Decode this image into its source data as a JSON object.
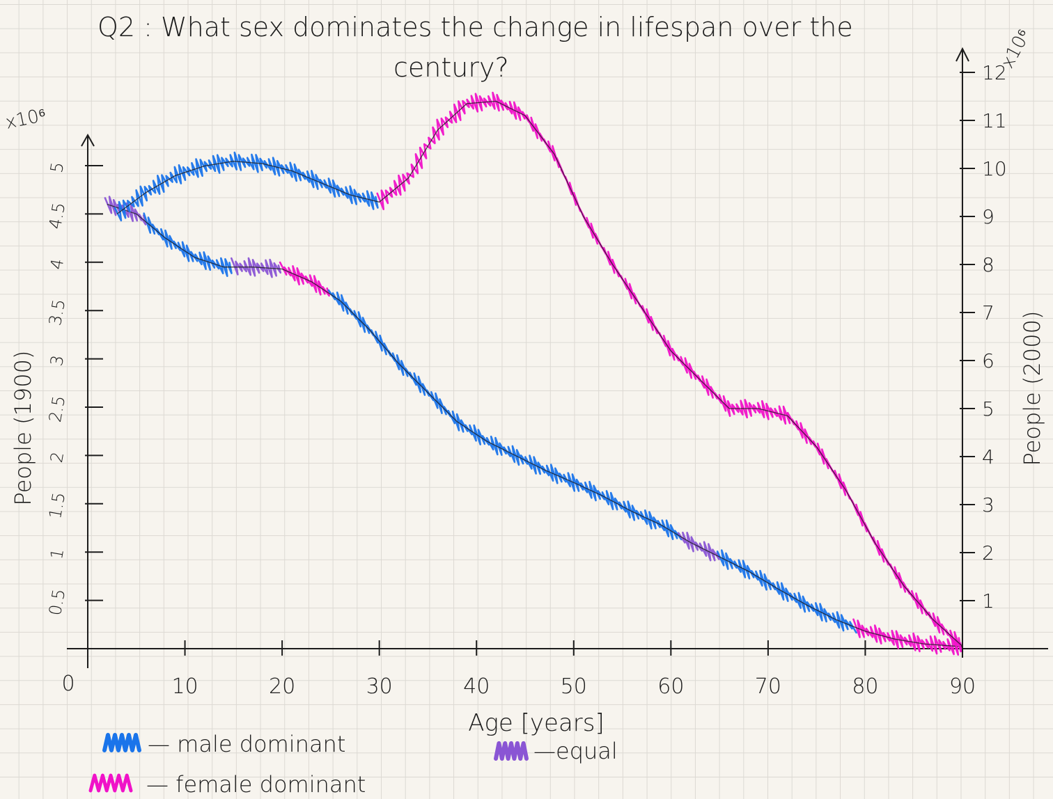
{
  "chart_data": {
    "type": "line",
    "title_line1": "Q2 : What sex dominates the change in lifespan over the",
    "title_line2": "century?",
    "xlabel": "Age [years]",
    "xlim": [
      0,
      90
    ],
    "x_origin_label": "0",
    "xticks": [
      10,
      20,
      30,
      40,
      50,
      60,
      70,
      80,
      90
    ],
    "xtick_labels": [
      "10",
      "20",
      "30",
      "40",
      "50",
      "60",
      "70",
      "80",
      "90"
    ],
    "left_axis": {
      "label": "People (1900)",
      "multiplier": "x10⁶",
      "ylim": [
        0,
        5.2
      ],
      "ticks": [
        0.5,
        1,
        1.5,
        2,
        2.5,
        3,
        3.5,
        4,
        4.5,
        5
      ],
      "tick_labels": [
        "0.5",
        "1",
        "1.5",
        "2",
        "2.5",
        "3",
        "3.5",
        "4",
        "4.5",
        "5"
      ]
    },
    "right_axis": {
      "label": "People (2000)",
      "multiplier": "x10⁶",
      "ylim": [
        0,
        12
      ],
      "ticks": [
        1,
        2,
        3,
        4,
        5,
        6,
        7,
        8,
        9,
        10,
        11,
        12
      ],
      "tick_labels": [
        "1",
        "2",
        "3",
        "4",
        "5",
        "6",
        "7",
        "8",
        "9",
        "10",
        "11",
        "12"
      ]
    },
    "series": [
      {
        "axis": "left",
        "x": [
          2,
          5,
          8,
          11,
          14,
          17,
          20,
          23,
          26,
          29,
          32,
          35,
          38,
          41,
          44,
          47,
          50,
          53,
          56,
          59,
          62,
          65,
          68,
          71,
          74,
          77,
          80,
          83,
          86,
          90
        ],
        "y": [
          4.6,
          4.5,
          4.25,
          4.05,
          3.95,
          3.95,
          3.93,
          3.8,
          3.6,
          3.3,
          2.95,
          2.65,
          2.35,
          2.15,
          2.0,
          1.85,
          1.72,
          1.58,
          1.42,
          1.28,
          1.1,
          0.95,
          0.8,
          0.62,
          0.45,
          0.3,
          0.18,
          0.1,
          0.05,
          0.02
        ],
        "segments": [
          {
            "from": 2,
            "to": 6,
            "class": "equal"
          },
          {
            "from": 6,
            "to": 15,
            "class": "male"
          },
          {
            "from": 15,
            "to": 20,
            "class": "equal"
          },
          {
            "from": 20,
            "to": 25,
            "class": "female"
          },
          {
            "from": 25,
            "to": 61,
            "class": "male"
          },
          {
            "from": 61,
            "to": 65,
            "class": "equal"
          },
          {
            "from": 65,
            "to": 79,
            "class": "male"
          },
          {
            "from": 79,
            "to": 90,
            "class": "female"
          }
        ]
      },
      {
        "axis": "right",
        "x": [
          3,
          6,
          9,
          12,
          15,
          18,
          21,
          24,
          27,
          30,
          33,
          36,
          39,
          42,
          45,
          48,
          51,
          54,
          57,
          60,
          63,
          66,
          69,
          72,
          75,
          78,
          81,
          84,
          87,
          90
        ],
        "y": [
          9.05,
          9.5,
          9.85,
          10.05,
          10.15,
          10.1,
          9.95,
          9.7,
          9.45,
          9.3,
          9.8,
          10.8,
          11.35,
          11.4,
          11.1,
          10.3,
          9.0,
          8.0,
          7.1,
          6.2,
          5.6,
          5.0,
          5.0,
          4.85,
          4.2,
          3.3,
          2.2,
          1.3,
          0.6,
          0.05
        ],
        "segments": [
          {
            "from": 3,
            "to": 30,
            "class": "male"
          },
          {
            "from": 30,
            "to": 90,
            "class": "female"
          }
        ]
      }
    ],
    "legend": [
      {
        "key": "male",
        "label": "— male dominant",
        "color": "#1a74ea"
      },
      {
        "key": "female",
        "label": "— female dominant",
        "color": "#f012c8"
      },
      {
        "key": "equal",
        "label": "—equal",
        "color": "#8a55d4"
      }
    ],
    "colors": {
      "male": "#1a74ea",
      "female": "#f012c8",
      "equal": "#8a55d4",
      "ink": "#1c1c1c"
    }
  }
}
